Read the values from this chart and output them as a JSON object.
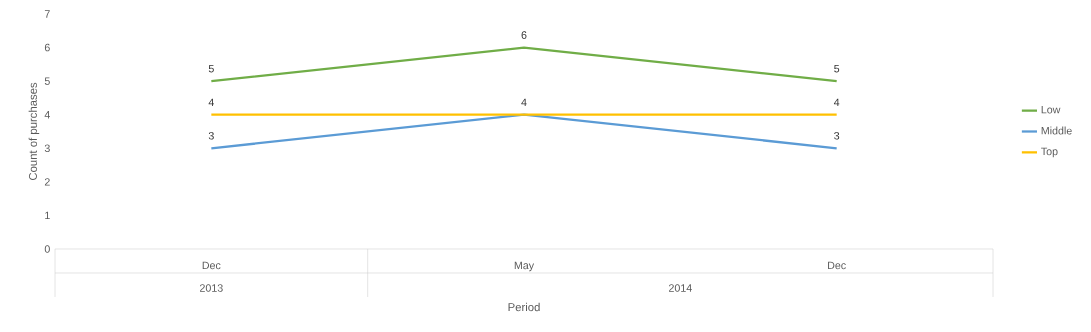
{
  "chart_data": {
    "type": "line",
    "xlabel": "Period",
    "ylabel": "Count of purchases",
    "categories": [
      "Dec",
      "May",
      "Dec"
    ],
    "annotations": [
      "2013",
      "2014"
    ],
    "series": [
      {
        "name": "Low",
        "color": "#70ad47",
        "values": [
          5,
          6,
          5
        ],
        "value_labels": [
          "5",
          "6",
          "5"
        ]
      },
      {
        "name": "Middle",
        "color": "#5b9bd5",
        "values": [
          3,
          4,
          3
        ],
        "value_labels": [
          "3",
          null,
          "3"
        ]
      },
      {
        "name": "Top",
        "color": "#ffc000",
        "values": [
          4,
          4,
          4
        ],
        "value_labels": [
          "4",
          "4",
          "4"
        ]
      }
    ],
    "ylim": [
      0,
      7
    ],
    "yticks": [
      0,
      1,
      2,
      3,
      4,
      5,
      6,
      7
    ],
    "legend": "right",
    "grid": false,
    "marker": "none",
    "line_style": "solid"
  }
}
